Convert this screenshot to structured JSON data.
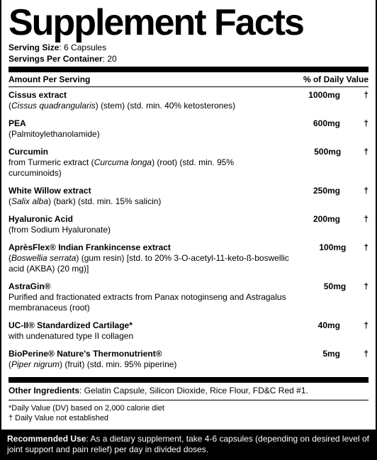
{
  "title": "Supplement Facts",
  "serving_size_label": "Serving Size",
  "serving_size_value": ": 6 Capsules",
  "servings_per_label": "Servings Per Container",
  "servings_per_value": ": 20",
  "header_amount": "Amount Per Serving",
  "header_dv": "% of Daily Value",
  "ingredients": [
    {
      "name": "Cissus extract",
      "sub_pre": "(",
      "sub_it": "Cissus quadrangularis",
      "sub_post": ") (stem) (std. min. 40% ketosterones)",
      "amount": "1000mg",
      "dv": "†"
    },
    {
      "name": "PEA",
      "sub_pre": "(Palmitoylethanolamide)",
      "sub_it": "",
      "sub_post": "",
      "amount": "600mg",
      "dv": "†"
    },
    {
      "name": "Curcumin",
      "sub_pre": "from Turmeric extract (",
      "sub_it": "Curcuma longa",
      "sub_post": ") (root) (std. min. 95% curcuminoids)",
      "amount": "500mg",
      "dv": "†"
    },
    {
      "name": "White Willow extract",
      "sub_pre": "(",
      "sub_it": "Salix alba",
      "sub_post": ") (bark) (std. min. 15% salicin)",
      "amount": "250mg",
      "dv": "†"
    },
    {
      "name": "Hyaluronic Acid",
      "sub_pre": "(from Sodium Hyaluronate)",
      "sub_it": "",
      "sub_post": "",
      "amount": "200mg",
      "dv": "†"
    },
    {
      "name": "AprèsFlex® Indian Frankincense extract",
      "sub_pre": "(",
      "sub_it": "Boswellia serrata",
      "sub_post": ") (gum resin) [std. to 20% 3-O-acetyl-11-keto-ß-boswellic acid (AKBA) (20 mg)]",
      "amount": "100mg",
      "dv": "†"
    },
    {
      "name": "AstraGin®",
      "sub_pre": "Purified and fractionated extracts from Panax notoginseng and Astragalus membranaceus (root)",
      "sub_it": "",
      "sub_post": "",
      "amount": "50mg",
      "dv": "†"
    },
    {
      "name": "UC-II® Standardized Cartilage*",
      "sub_pre": "with undenatured type II collagen",
      "sub_it": "",
      "sub_post": "",
      "amount": "40mg",
      "dv": "†"
    },
    {
      "name": "BioPerine® Nature's Thermonutrient®",
      "sub_pre": "(",
      "sub_it": "Piper nigrum",
      "sub_post": ") (fruit) (std. min. 95% piperine)",
      "amount": "5mg",
      "dv": "†"
    }
  ],
  "other_label": "Other Ingredients",
  "other_value": ": Gelatin Capsule, Silicon Dioxide, Rice Flour, FD&C Red #1.",
  "note1": "*Daily Value (DV) based on 2,000 calorie diet",
  "note2": "† Daily Value not established",
  "reco_label": "Recommended Use",
  "reco_value": ": As a dietary supplement, take 4-6 capsules (depending on desired level of joint support and pain relief) per day in divided doses.",
  "colors": {
    "fg": "#000000",
    "bg": "#ffffff",
    "reco_bg": "#000000",
    "reco_fg": "#ffffff"
  }
}
